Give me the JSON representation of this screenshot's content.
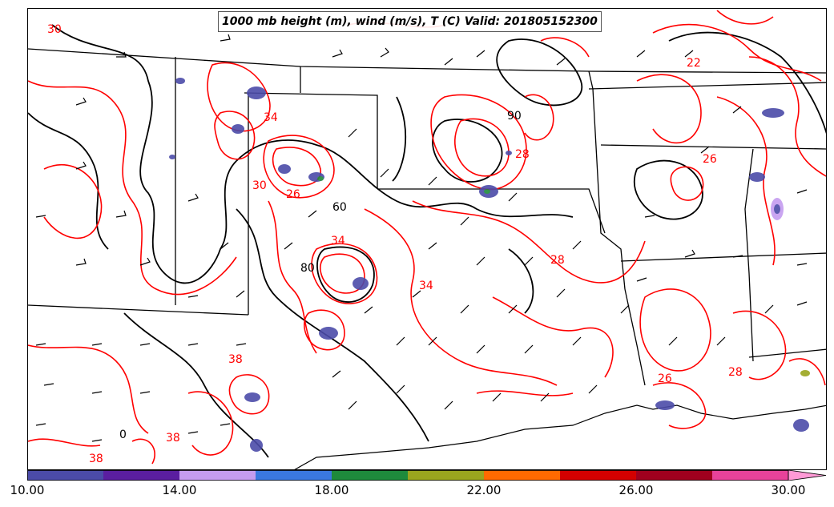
{
  "title": "1000 mb height (m), wind (m/s), T (C) Valid: 201805152300",
  "colorbar": {
    "tick_labels": [
      "10.00",
      "14.00",
      "18.00",
      "22.00",
      "26.00",
      "30.00"
    ],
    "colors": [
      "#4b4ba8",
      "#5a1ea0",
      "#c59cf0",
      "#3a78e0",
      "#1e8a3c",
      "#9aa51e",
      "#ff6a00",
      "#d40000",
      "#a0001e",
      "#e8429a"
    ],
    "extend_color": "#ff9ad6"
  },
  "colors": {
    "temperature_contour": "#ff0000",
    "height_contour": "#000000",
    "boundaries": "#000000"
  },
  "contour_labels": [
    "30",
    "22",
    "34",
    "26",
    "26",
    "30",
    "28",
    "34",
    "28",
    "34",
    "38",
    "26",
    "28",
    "38",
    "38"
  ],
  "height_labels": [
    "90",
    "80",
    "60",
    "0"
  ]
}
